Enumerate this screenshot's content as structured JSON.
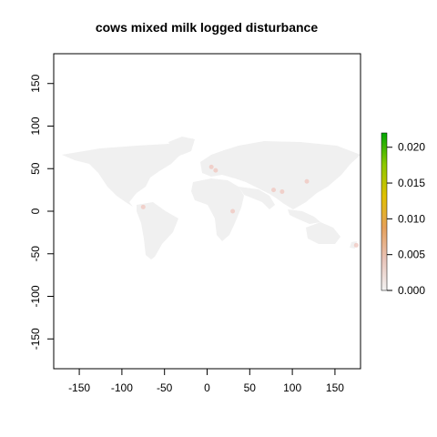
{
  "chart_data": {
    "type": "heatmap",
    "title": "cows mixed milk logged disturbance",
    "xlabel": "",
    "ylabel": "",
    "xlim": [
      -180,
      180
    ],
    "ylim": [
      -185,
      185
    ],
    "x_ticks": [
      -150,
      -100,
      -50,
      0,
      50,
      100,
      150
    ],
    "y_ticks": [
      150,
      100,
      50,
      0,
      -50,
      -100,
      -150
    ],
    "x_tick_labels": [
      "-150",
      "-100",
      "-50",
      "0",
      "50",
      "100",
      "150"
    ],
    "y_tick_labels": [
      "150",
      "100",
      "50",
      "0",
      "-50",
      "-100",
      "-150"
    ],
    "legend": {
      "placement": "right",
      "min": 0.0,
      "max": 0.022,
      "ticks": [
        0.0,
        0.005,
        0.01,
        0.015,
        0.02
      ],
      "tick_labels": [
        "0.000",
        "0.005",
        "0.010",
        "0.015",
        "0.020"
      ],
      "colors": [
        "#f2f2f2",
        "#e8c3b8",
        "#e6a05a",
        "#e0c000",
        "#8cc800",
        "#00a600"
      ]
    },
    "land_color": "#f0f0f0",
    "hotspot_color": "#f0c8c0",
    "hotspots": [
      {
        "lon": 10,
        "lat": 48,
        "value": 0.001
      },
      {
        "lon": 5,
        "lat": 52,
        "value": 0.001
      },
      {
        "lon": 78,
        "lat": 25,
        "value": 0.002
      },
      {
        "lon": 88,
        "lat": 23,
        "value": 0.0015
      },
      {
        "lon": 117,
        "lat": 35,
        "value": 0.001
      },
      {
        "lon": 30,
        "lat": 0,
        "value": 0.001
      },
      {
        "lon": 175,
        "lat": -40,
        "value": 0.001
      },
      {
        "lon": -75,
        "lat": 5,
        "value": 0.0005
      }
    ]
  }
}
